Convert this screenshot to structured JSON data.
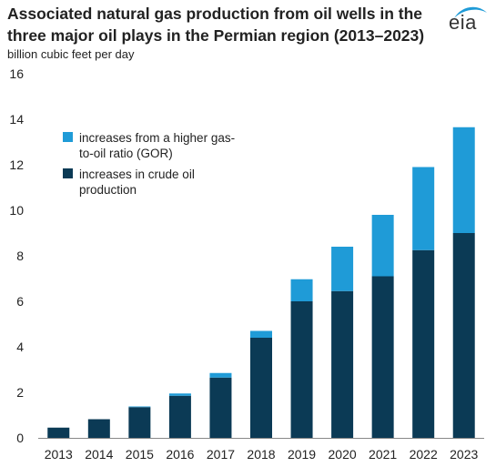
{
  "header": {
    "title": "Associated natural gas production from oil wells in the three major oil plays in the Permian region (2013–2023)",
    "units": "billion cubic feet per day",
    "logo_text": "eia"
  },
  "colors": {
    "crude": "#0b3a55",
    "gor": "#1f9bd7",
    "logo": "#1f9bd7"
  },
  "chart_data": {
    "type": "bar",
    "stacked": true,
    "categories": [
      "2013",
      "2014",
      "2015",
      "2016",
      "2017",
      "2018",
      "2019",
      "2020",
      "2021",
      "2022",
      "2023"
    ],
    "series": [
      {
        "name": "increases in crude oil production",
        "values": [
          0.45,
          0.82,
          1.35,
          1.85,
          2.65,
          4.4,
          6.0,
          6.45,
          7.1,
          8.25,
          9.0
        ]
      },
      {
        "name": "increases from a higher gas-to-oil ratio (GOR)",
        "values": [
          0.0,
          0.0,
          0.03,
          0.1,
          0.2,
          0.3,
          0.97,
          1.95,
          2.7,
          3.65,
          4.65
        ]
      }
    ],
    "ylabel": "billion cubic feet per day",
    "ylim": [
      0,
      16
    ],
    "yticks": [
      0,
      2,
      4,
      6,
      8,
      10,
      12,
      14,
      16
    ],
    "grid": false,
    "legend_position": "top-left"
  }
}
